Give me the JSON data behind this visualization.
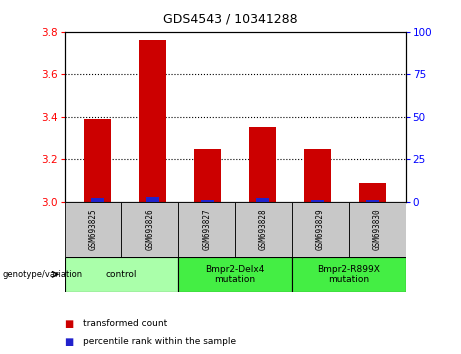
{
  "title": "GDS4543 / 10341288",
  "samples": [
    "GSM693825",
    "GSM693826",
    "GSM693827",
    "GSM693828",
    "GSM693829",
    "GSM693830"
  ],
  "red_values": [
    3.39,
    3.76,
    3.25,
    3.35,
    3.25,
    3.09
  ],
  "blue_pct": [
    2,
    3,
    1,
    2,
    1,
    1
  ],
  "ylim_left": [
    3.0,
    3.8
  ],
  "ylim_right": [
    0,
    100
  ],
  "yticks_left": [
    3.0,
    3.2,
    3.4,
    3.6,
    3.8
  ],
  "yticks_right": [
    0,
    25,
    50,
    75,
    100
  ],
  "grid_values": [
    3.2,
    3.4,
    3.6
  ],
  "groups": [
    {
      "label": "control",
      "cols": [
        0,
        1
      ],
      "color": "#aaffaa"
    },
    {
      "label": "Bmpr2-Delx4\nmutation",
      "cols": [
        2,
        3
      ],
      "color": "#44ee44"
    },
    {
      "label": "Bmpr2-R899X\nmutation",
      "cols": [
        4,
        5
      ],
      "color": "#44ee44"
    }
  ],
  "bar_width": 0.5,
  "red_color": "#cc0000",
  "blue_color": "#2222cc",
  "sample_bg": "#c8c8c8",
  "legend_red_label": "transformed count",
  "legend_blue_label": "percentile rank within the sample",
  "genotype_label": "genotype/variation"
}
